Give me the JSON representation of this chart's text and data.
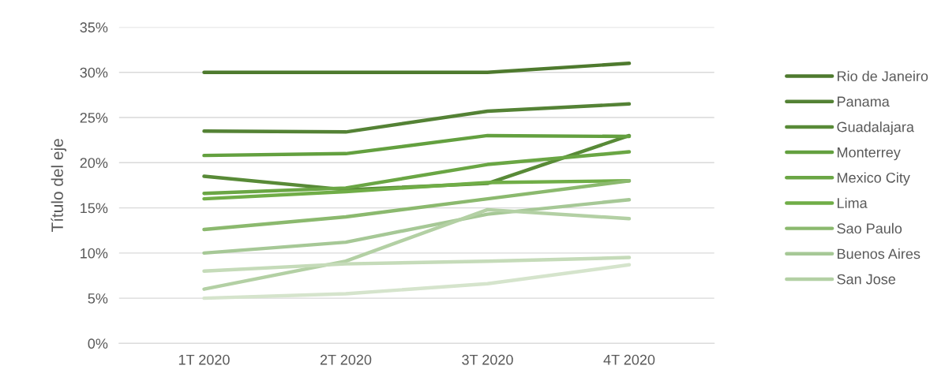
{
  "chart_data": {
    "type": "line",
    "ylabel": "Título del eje",
    "categories": [
      "1T 2020",
      "2T 2020",
      "3T 2020",
      "4T 2020"
    ],
    "series": [
      {
        "name": "Rio de Janeiro",
        "color": "#4e7a2e",
        "values": [
          30,
          30,
          30,
          31
        ]
      },
      {
        "name": "Panama",
        "color": "#548235",
        "values": [
          23.5,
          23.4,
          25.7,
          26.5
        ]
      },
      {
        "name": "Guadalajara",
        "color": "#588a37",
        "values": [
          18.5,
          17,
          17.7,
          23
        ]
      },
      {
        "name": "Monterrey",
        "color": "#63a03f",
        "values": [
          20.8,
          21,
          23,
          22.9
        ]
      },
      {
        "name": "Mexico City",
        "color": "#6aa644",
        "values": [
          16.6,
          17.2,
          19.8,
          21.2
        ]
      },
      {
        "name": "Lima",
        "color": "#70ad47",
        "values": [
          16,
          16.8,
          17.8,
          18
        ]
      },
      {
        "name": "Sao Paulo",
        "color": "#8bb96e",
        "values": [
          12.6,
          14,
          16,
          18
        ]
      },
      {
        "name": "Buenos Aires",
        "color": "#a6c896",
        "values": [
          10,
          11.2,
          14.3,
          15.9
        ]
      },
      {
        "name": "San Jose",
        "color": "#b3d0a4",
        "values": [
          6,
          9.1,
          14.8,
          13.8
        ]
      },
      {
        "color": "#c5dbb9",
        "values": [
          8,
          8.8,
          9.1,
          9.5
        ]
      },
      {
        "color": "#d5e4cc",
        "values": [
          5,
          5.5,
          6.6,
          8.7
        ]
      }
    ],
    "ylim": [
      0,
      35
    ],
    "yticks": [
      {
        "value": 0,
        "label": "0%"
      },
      {
        "value": 5,
        "label": "5%"
      },
      {
        "value": 10,
        "label": "10%"
      },
      {
        "value": 15,
        "label": "15%"
      },
      {
        "value": 20,
        "label": "20%"
      },
      {
        "value": 25,
        "label": "25%"
      },
      {
        "value": 30,
        "label": "30%"
      },
      {
        "value": 35,
        "label": "35%"
      }
    ],
    "grid": "y",
    "legend": "right",
    "marker": "none",
    "line_style": "solid"
  }
}
